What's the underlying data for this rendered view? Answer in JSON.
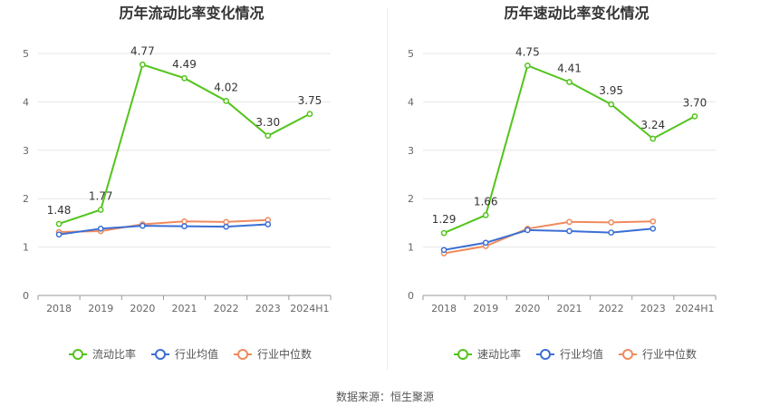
{
  "colors": {
    "primary": "#52c41a",
    "industry_avg": "#3b6fd4",
    "industry_median": "#f08a5d",
    "grid": "#e6e6e6",
    "axis": "#666666",
    "label": "#333333"
  },
  "source": "数据来源：恒生聚源",
  "chart_data": [
    {
      "type": "line",
      "title": "历年流动比率变化情况",
      "categories": [
        "2018",
        "2019",
        "2020",
        "2021",
        "2022",
        "2023",
        "2024H1"
      ],
      "ylim": [
        0,
        5
      ],
      "yticks": [
        "0",
        "1",
        "2",
        "3",
        "4",
        "5"
      ],
      "grid": true,
      "legend_position": "bottom",
      "series": [
        {
          "name": "流动比率",
          "values": [
            1.48,
            1.77,
            4.77,
            4.49,
            4.02,
            3.3,
            3.75
          ],
          "labels": [
            "1.48",
            "1.77",
            "4.77",
            "4.49",
            "4.02",
            "3.30",
            "3.75"
          ]
        },
        {
          "name": "行业均值",
          "values": [
            1.26,
            1.38,
            1.44,
            1.43,
            1.42,
            1.47,
            null
          ]
        },
        {
          "name": "行业中位数",
          "values": [
            1.31,
            1.33,
            1.47,
            1.53,
            1.52,
            1.56,
            null
          ]
        }
      ]
    },
    {
      "type": "line",
      "title": "历年速动比率变化情况",
      "categories": [
        "2018",
        "2019",
        "2020",
        "2021",
        "2022",
        "2023",
        "2024H1"
      ],
      "ylim": [
        0,
        5
      ],
      "yticks": [
        "0",
        "1",
        "2",
        "3",
        "4",
        "5"
      ],
      "grid": true,
      "legend_position": "bottom",
      "series": [
        {
          "name": "速动比率",
          "values": [
            1.29,
            1.66,
            4.75,
            4.41,
            3.95,
            3.24,
            3.7
          ],
          "labels": [
            "1.29",
            "1.66",
            "4.75",
            "4.41",
            "3.95",
            "3.24",
            "3.70"
          ]
        },
        {
          "name": "行业均值",
          "values": [
            0.94,
            1.09,
            1.35,
            1.33,
            1.3,
            1.38,
            null
          ]
        },
        {
          "name": "行业中位数",
          "values": [
            0.87,
            1.02,
            1.38,
            1.52,
            1.51,
            1.53,
            null
          ]
        }
      ]
    }
  ]
}
